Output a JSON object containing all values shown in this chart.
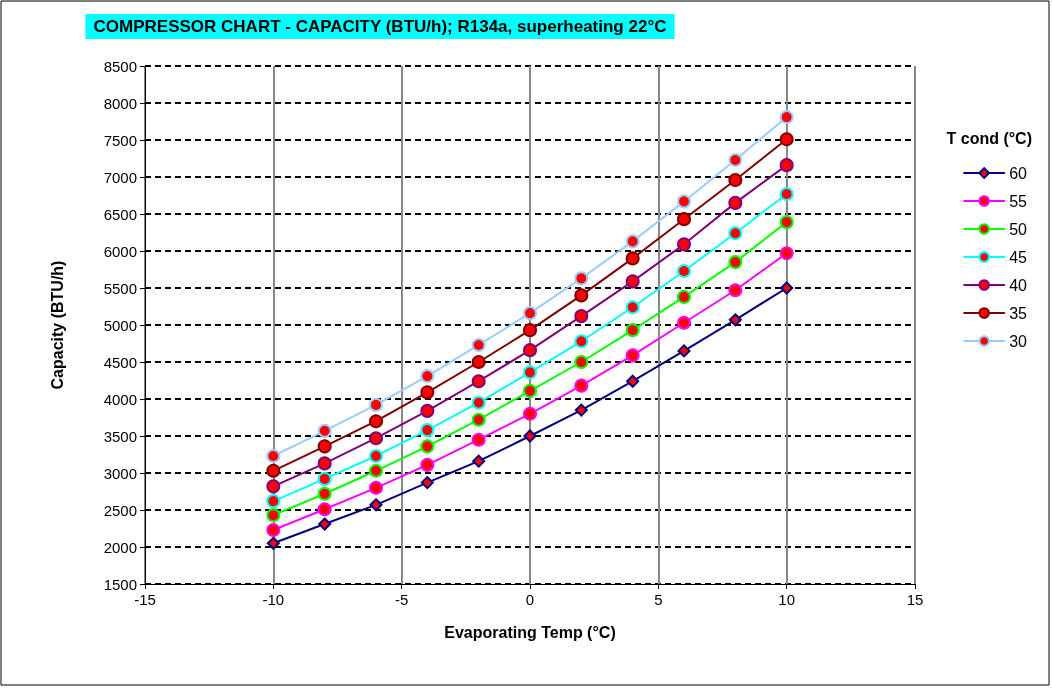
{
  "chart_data": {
    "type": "line",
    "title": "COMPRESSOR CHART - CAPACITY (BTU/h); R134a, superheating 22°C",
    "xlabel": "Evaporating Temp (°C)",
    "ylabel": "Capacity (BTU/h)",
    "legend_title": "T cond (°C)",
    "legend": "right",
    "grid": true,
    "line_style": "solid",
    "x": [
      -10,
      -8,
      -6,
      -4,
      -2,
      0,
      2,
      4,
      6,
      8,
      10
    ],
    "xlim": [
      -15,
      15
    ],
    "xticks": [
      -15,
      -10,
      -5,
      0,
      5,
      10,
      15
    ],
    "ylim": [
      1500,
      8500
    ],
    "yticks": [
      1500,
      2000,
      2500,
      3000,
      3500,
      4000,
      4500,
      5000,
      5500,
      6000,
      6500,
      7000,
      7500,
      8000,
      8500
    ],
    "series": [
      {
        "name": "60",
        "color": "#000080",
        "marker": "diamond",
        "values": [
          2050,
          2310,
          2570,
          2870,
          3160,
          3500,
          3850,
          4240,
          4650,
          5070,
          5500
        ]
      },
      {
        "name": "55",
        "color": "#ff00ff",
        "marker": "circle",
        "values": [
          2230,
          2510,
          2800,
          3110,
          3450,
          3800,
          4180,
          4590,
          5030,
          5470,
          5970
        ]
      },
      {
        "name": "50",
        "color": "#00ff00",
        "marker": "circle",
        "values": [
          2430,
          2720,
          3030,
          3360,
          3720,
          4110,
          4500,
          4930,
          5380,
          5850,
          6390
        ]
      },
      {
        "name": "45",
        "color": "#00ffff",
        "marker": "circle",
        "values": [
          2620,
          2920,
          3230,
          3580,
          3950,
          4360,
          4780,
          5240,
          5730,
          6240,
          6770
        ]
      },
      {
        "name": "40",
        "color": "#800080",
        "marker": "circle",
        "values": [
          2820,
          3130,
          3470,
          3840,
          4240,
          4660,
          5120,
          5590,
          6090,
          6650,
          7160
        ]
      },
      {
        "name": "35",
        "color": "#800000",
        "marker": "circle",
        "values": [
          3030,
          3360,
          3700,
          4090,
          4500,
          4930,
          5400,
          5900,
          6430,
          6960,
          7510
        ]
      },
      {
        "name": "30",
        "color": "#99ccff",
        "marker": "circle",
        "values": [
          3230,
          3570,
          3920,
          4310,
          4730,
          5160,
          5630,
          6130,
          6670,
          7230,
          7810
        ]
      }
    ]
  }
}
